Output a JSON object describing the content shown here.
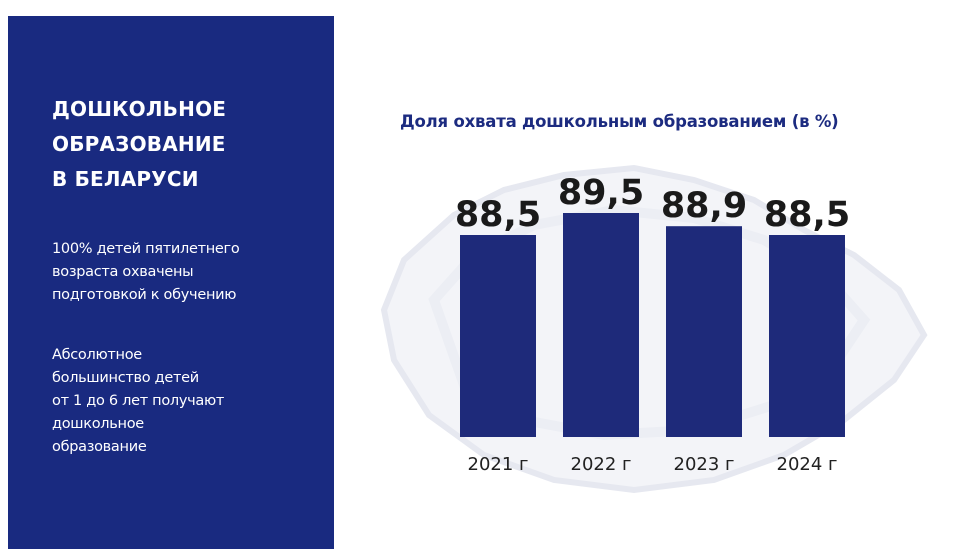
{
  "sidebar": {
    "title_lines": [
      "ДОШКОЛЬНОЕ",
      "ОБРАЗОВАНИЕ",
      "В БЕЛАРУСИ"
    ],
    "paragraph1_lines": [
      "100% детей пятилетнего",
      "возраста охвачены",
      "подготовкой к обучению"
    ],
    "paragraph2_lines": [
      "Абсолютное",
      "большинство детей",
      "от 1 до 6 лет получают",
      "дошкольное",
      "образование"
    ]
  },
  "colors": {
    "panel": "#192a80",
    "bar": "#1e2a7a",
    "chart_title": "#1c2b80"
  },
  "chart_data": {
    "type": "bar",
    "title": "Доля охвата дошкольным образованием (в %)",
    "categories": [
      "2021 г",
      "2022 г",
      "2023 г",
      "2024 г"
    ],
    "values": [
      88.5,
      89.5,
      88.9,
      88.5
    ],
    "value_labels": [
      "88,5",
      "89,5",
      "88,9",
      "88,5"
    ],
    "xlabel": "",
    "ylabel": "",
    "grid": false,
    "legend": "none"
  }
}
